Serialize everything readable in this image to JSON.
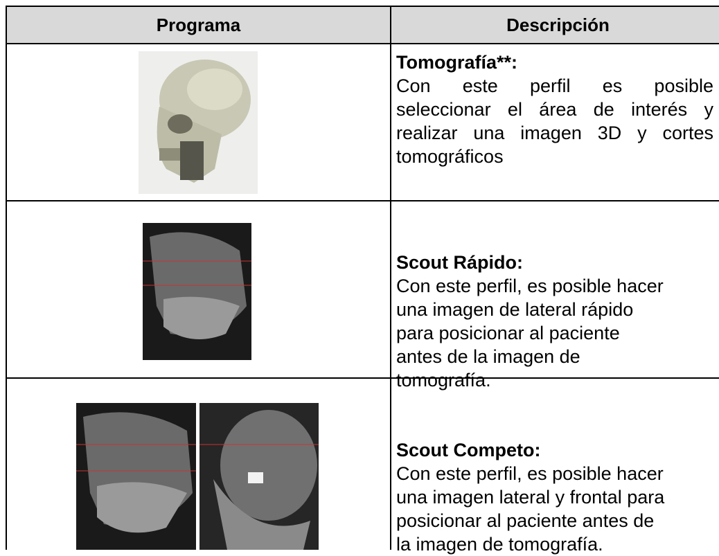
{
  "table": {
    "headers": [
      "Programa",
      "Descripción"
    ],
    "rows": [
      {
        "title": "Tomografía**:",
        "lines": [
          "Con este perfil es posible",
          "seleccionar el área de interés y",
          "realizar una imagen 3D y cortes",
          "tomográficos"
        ]
      },
      {
        "title": "Scout Rápido:",
        "lines": [
          "Con este perfil, es posible hacer",
          "una imagen de lateral rápido",
          "para posicionar al paciente",
          "antes de la imagen de",
          "tomografía."
        ]
      },
      {
        "title": "Scout Competo:",
        "lines": [
          "Con este perfil, es posible hacer",
          "una imagen lateral y frontal para",
          "posicionar al paciente antes de",
          "la imagen de tomografía."
        ]
      }
    ]
  }
}
